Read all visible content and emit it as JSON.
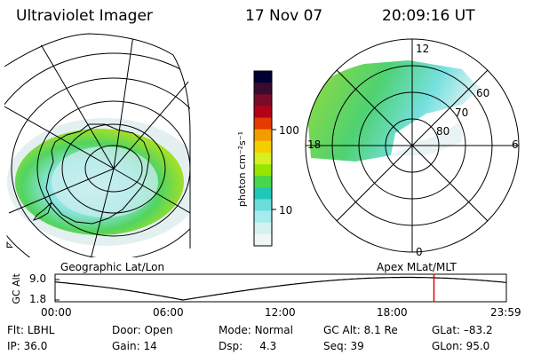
{
  "header": {
    "instrument": "Ultraviolet Imager",
    "date": "17 Nov 07",
    "time": "20:09:16 UT"
  },
  "panels": {
    "left_caption": "Geographic Lat/Lon",
    "right_caption": "Apex MLat/MLT",
    "polar_labels": {
      "top": "12",
      "left": "18",
      "right": "6",
      "bottom": "0",
      "ring_60": "60",
      "ring_70": "70",
      "ring_80": "80"
    },
    "geo_corner_label": "⊾"
  },
  "colorbar": {
    "unit_label": "photon cm⁻²s⁻¹",
    "tick_100": "100",
    "tick_10": "10",
    "colors": [
      "#000033",
      "#3b0a2f",
      "#7a0c2a",
      "#b40018",
      "#e53a00",
      "#f39c00",
      "#f3cf00",
      "#d7ef23",
      "#98e600",
      "#48d64a",
      "#20c6b8",
      "#6cdddd",
      "#a7ecec",
      "#d5f1f1",
      "#eef6f6"
    ]
  },
  "altitude_strip": {
    "axis_label": "GC Alt",
    "y_ticks": [
      "9.0",
      "1.8"
    ],
    "x_ticks": [
      "00:00",
      "06:00",
      "12:00",
      "18:00",
      "23:59"
    ],
    "current_marker_hour": 20.15
  },
  "status": {
    "row1": [
      {
        "label": "Flt:",
        "value": "LBHL"
      },
      {
        "label": "Door:",
        "value": "Open"
      },
      {
        "label": "Mode:",
        "value": "Normal"
      },
      {
        "label": "GC Alt:",
        "value": "8.1 Re"
      },
      {
        "label": "GLat:",
        "value": "–83.2"
      }
    ],
    "row2": [
      {
        "label": "IP:",
        "value": "36.0"
      },
      {
        "label": "Gain:",
        "value": "14"
      },
      {
        "label": "Dsp:",
        "value": "4.3"
      },
      {
        "label": "Seq:",
        "value": "39"
      },
      {
        "label": "GLon:",
        "value": "95.0"
      }
    ]
  }
}
